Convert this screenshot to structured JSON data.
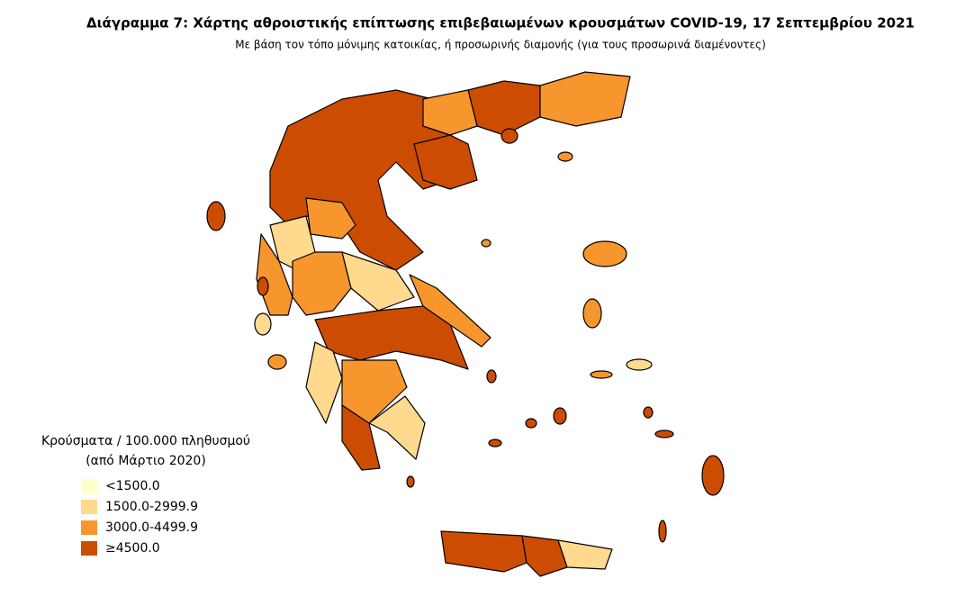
{
  "header": {
    "title": "Διάγραμμα 7: Χάρτης αθροιστικής επίπτωσης επιβεβαιωμένων κρουσμάτων COVID-19, 17 Σεπτεμβρίου 2021",
    "subtitle": "Με βάση τον τόπο μόνιμης κατοικίας, ή προσωρινής διαμονής (για τους προσωρινά διαμένοντες)"
  },
  "legend": {
    "title": [
      "Κρούσματα / 100.000 πληθυσμού",
      "(από Μάρτιο 2020)"
    ],
    "items": [
      {
        "label": "<1500.0",
        "color": "#ffffcc"
      },
      {
        "label": "1500.0-2999.9",
        "color": "#fed98e"
      },
      {
        "label": "3000.0-4499.9",
        "color": "#f7962d"
      },
      {
        "label": "≥4500.0",
        "color": "#cc4c02"
      }
    ]
  }
}
